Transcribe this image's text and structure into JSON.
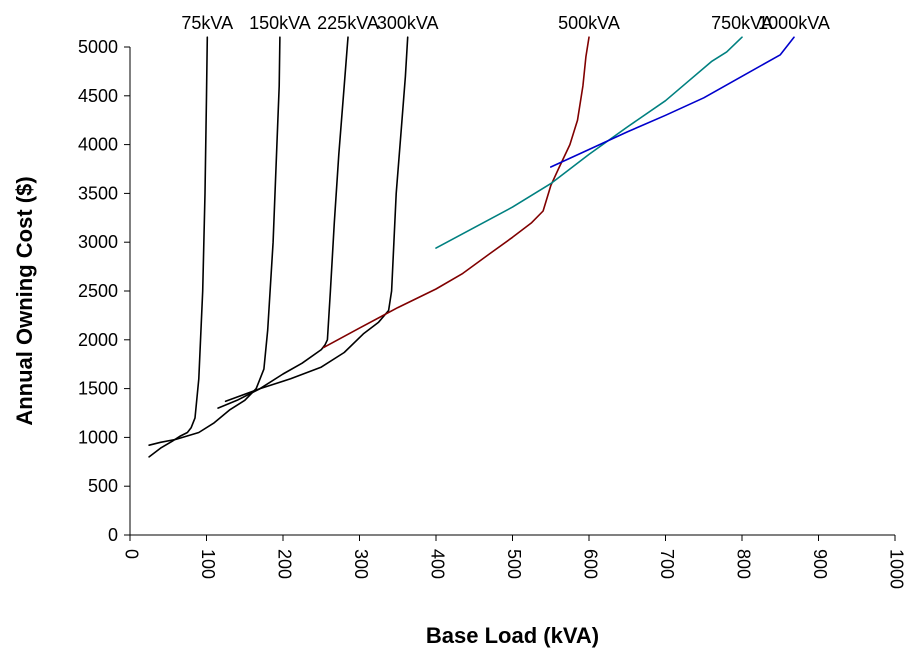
{
  "chart_data": {
    "type": "line",
    "title": "",
    "xlabel": "Base Load (kVA)",
    "ylabel": "Annual Owning Cost ($)",
    "xlim": [
      0,
      1000
    ],
    "ylim": [
      0,
      5000
    ],
    "x_ticks": [
      "0",
      "100",
      "200",
      "300",
      "400",
      "500",
      "600",
      "700",
      "800",
      "900",
      "1000"
    ],
    "y_ticks": [
      "0",
      "500",
      "1000",
      "1500",
      "2000",
      "2500",
      "3000",
      "3500",
      "4000",
      "4500",
      "5000"
    ],
    "grid": false,
    "legend": "none",
    "series": [
      {
        "name": "75kVA",
        "color": "#000000",
        "points": [
          [
            25,
            800
          ],
          [
            40,
            890
          ],
          [
            55,
            960
          ],
          [
            65,
            1010
          ],
          [
            75,
            1050
          ],
          [
            80,
            1100
          ],
          [
            85,
            1200
          ],
          [
            90,
            1600
          ],
          [
            95,
            2500
          ],
          [
            98,
            3500
          ],
          [
            100,
            4500
          ],
          [
            101,
            5100
          ]
        ]
      },
      {
        "name": "150kVA",
        "color": "#000000",
        "points": [
          [
            25,
            920
          ],
          [
            40,
            950
          ],
          [
            60,
            980
          ],
          [
            90,
            1050
          ],
          [
            110,
            1150
          ],
          [
            130,
            1280
          ],
          [
            150,
            1380
          ],
          [
            165,
            1500
          ],
          [
            175,
            1700
          ],
          [
            180,
            2100
          ],
          [
            187,
            3000
          ],
          [
            192,
            4000
          ],
          [
            195,
            4600
          ],
          [
            196,
            5100
          ]
        ]
      },
      {
        "name": "225kVA",
        "color": "#000000",
        "points": [
          [
            115,
            1300
          ],
          [
            140,
            1380
          ],
          [
            170,
            1500
          ],
          [
            200,
            1650
          ],
          [
            225,
            1760
          ],
          [
            250,
            1900
          ],
          [
            255,
            1950
          ],
          [
            258,
            2000
          ],
          [
            262,
            2500
          ],
          [
            267,
            3200
          ],
          [
            273,
            3900
          ],
          [
            280,
            4600
          ],
          [
            285,
            5100
          ]
        ]
      },
      {
        "name": "300kVA",
        "color": "#000000",
        "points": [
          [
            125,
            1370
          ],
          [
            170,
            1500
          ],
          [
            210,
            1600
          ],
          [
            250,
            1720
          ],
          [
            280,
            1870
          ],
          [
            305,
            2060
          ],
          [
            325,
            2180
          ],
          [
            338,
            2300
          ],
          [
            342,
            2500
          ],
          [
            345,
            3000
          ],
          [
            348,
            3500
          ],
          [
            355,
            4200
          ],
          [
            360,
            4700
          ],
          [
            363,
            5100
          ]
        ]
      },
      {
        "name": "500kVA",
        "color": "#800000",
        "points": [
          [
            253,
            1920
          ],
          [
            300,
            2120
          ],
          [
            350,
            2330
          ],
          [
            400,
            2520
          ],
          [
            435,
            2680
          ],
          [
            470,
            2880
          ],
          [
            500,
            3050
          ],
          [
            525,
            3200
          ],
          [
            540,
            3320
          ],
          [
            550,
            3580
          ],
          [
            560,
            3750
          ],
          [
            575,
            4000
          ],
          [
            585,
            4250
          ],
          [
            592,
            4600
          ],
          [
            596,
            4900
          ],
          [
            600,
            5100
          ]
        ]
      },
      {
        "name": "750kVA",
        "color": "#008080",
        "points": [
          [
            400,
            2940
          ],
          [
            450,
            3150
          ],
          [
            500,
            3360
          ],
          [
            550,
            3600
          ],
          [
            600,
            3900
          ],
          [
            650,
            4180
          ],
          [
            700,
            4450
          ],
          [
            730,
            4650
          ],
          [
            760,
            4850
          ],
          [
            780,
            4950
          ],
          [
            800,
            5100
          ]
        ]
      },
      {
        "name": "1000kVA",
        "color": "#0000cc",
        "points": [
          [
            550,
            3770
          ],
          [
            600,
            3950
          ],
          [
            650,
            4130
          ],
          [
            700,
            4300
          ],
          [
            750,
            4480
          ],
          [
            800,
            4700
          ],
          [
            850,
            4920
          ],
          [
            868,
            5100
          ]
        ]
      }
    ]
  }
}
